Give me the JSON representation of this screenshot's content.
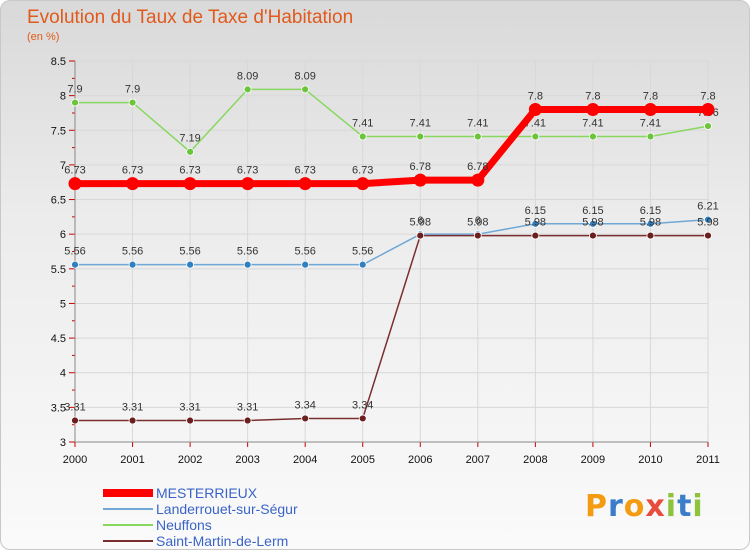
{
  "header": {
    "title": "Evolution du Taux de Taxe d'Habitation",
    "subtitle": "(en %)"
  },
  "colors": {
    "title": "#e05a1c",
    "grid": "#d8d8d8",
    "axis": "#888888"
  },
  "chart_data": {
    "type": "line",
    "title": "Evolution du Taux de Taxe d'Habitation",
    "ylabel": "(en %)",
    "xlabel": "",
    "categories": [
      "2000",
      "2001",
      "2002",
      "2003",
      "2004",
      "2005",
      "2006",
      "2007",
      "2008",
      "2009",
      "2010",
      "2011"
    ],
    "ylim": [
      3,
      8.5
    ],
    "yticks": [
      "3",
      "3.5",
      "4",
      "4.5",
      "5",
      "5.5",
      "6",
      "6.5",
      "7",
      "7.5",
      "8",
      "8.5"
    ],
    "grid": true,
    "legend_position": "bottom-left",
    "series": [
      {
        "name": "MESTERRIEUX",
        "color": "#ff0000",
        "emphasis": true,
        "values": [
          6.73,
          6.73,
          6.73,
          6.73,
          6.73,
          6.73,
          6.78,
          6.78,
          7.8,
          7.8,
          7.8,
          7.8
        ],
        "labels": [
          "6.73",
          "6.73",
          "6.73",
          "6.73",
          "6.73",
          "6.73",
          "6.78",
          "6.78",
          "7.8",
          "7.8",
          "7.8",
          "7.8"
        ]
      },
      {
        "name": "Landerrouet-sur-Ségur",
        "color": "#6fa8d6",
        "point_color": "#2f7fc1",
        "values": [
          5.56,
          5.56,
          5.56,
          5.56,
          5.56,
          5.56,
          6.0,
          6.0,
          6.15,
          6.15,
          6.15,
          6.21
        ],
        "labels": [
          "5.56",
          "5.56",
          "5.56",
          "5.56",
          "5.56",
          "5.56",
          "6",
          "6",
          "6.15",
          "6.15",
          "6.15",
          "6.21"
        ]
      },
      {
        "name": "Neuffons",
        "color": "#88d860",
        "point_color": "#6cc43a",
        "values": [
          7.9,
          7.9,
          7.19,
          8.09,
          8.09,
          7.41,
          7.41,
          7.41,
          7.41,
          7.41,
          7.41,
          7.56
        ],
        "labels": [
          "7.9",
          "7.9",
          "7.19",
          "8.09",
          "8.09",
          "7.41",
          "7.41",
          "7.41",
          "7.41",
          "7.41",
          "7.41",
          "7.56"
        ]
      },
      {
        "name": "Saint-Martin-de-Lerm",
        "color": "#7a2e2e",
        "point_color": "#6b1f1f",
        "values": [
          3.31,
          3.31,
          3.31,
          3.31,
          3.34,
          3.34,
          5.98,
          5.98,
          5.98,
          5.98,
          5.98,
          5.98
        ],
        "labels": [
          "3.31",
          "3.31",
          "3.31",
          "3.31",
          "3.34",
          "3.34",
          "5.98",
          "5.98",
          "5.98",
          "5.98",
          "5.98",
          "5.98"
        ]
      }
    ]
  },
  "logo": {
    "letters": [
      "P",
      "r",
      "o",
      "x",
      "i",
      "t",
      "i"
    ],
    "colors": [
      "#f39c12",
      "#3a7dc8",
      "#f39c12",
      "#e74c3c",
      "#8fc33d",
      "#3a7dc8",
      "#8fc33d"
    ]
  }
}
